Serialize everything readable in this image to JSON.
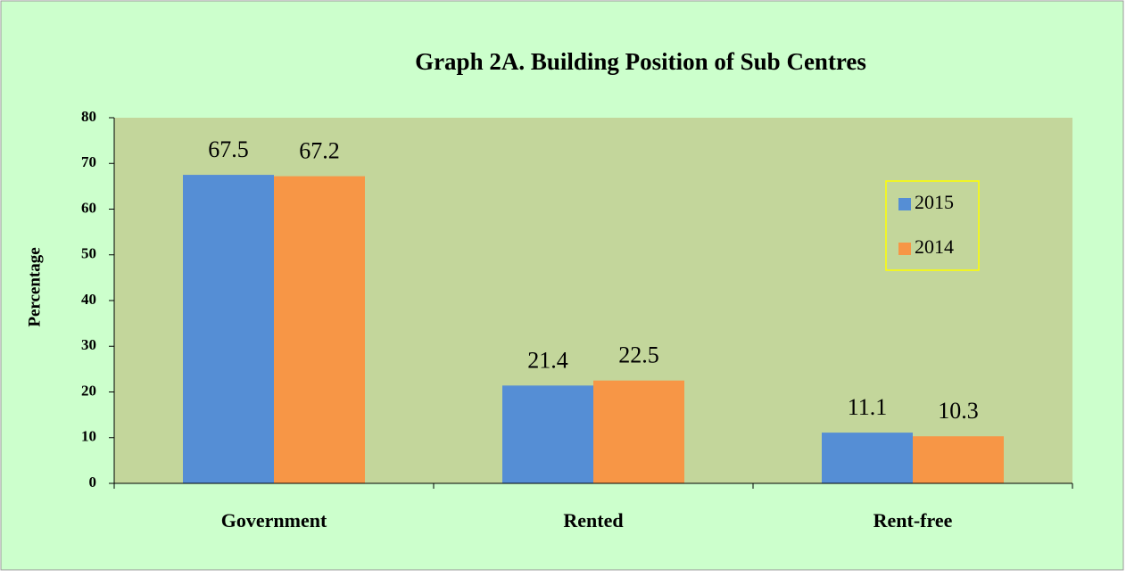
{
  "chart_data": {
    "type": "bar",
    "title": "Graph 2A. Building Position of Sub Centres",
    "y_label": "Percentage",
    "categories": [
      "Government",
      "Rented",
      "Rent-free"
    ],
    "series": [
      {
        "name": "2015",
        "color": "#558ed5",
        "values": [
          67.5,
          21.4,
          11.1
        ]
      },
      {
        "name": "2014",
        "color": "#f79646",
        "values": [
          67.2,
          22.5,
          10.3
        ]
      }
    ],
    "ylim": [
      0,
      80
    ],
    "yticks": [
      0,
      10,
      20,
      30,
      40,
      50,
      60,
      70,
      80
    ],
    "grid": false,
    "legend": "upper right",
    "show_value_labels": true
  }
}
